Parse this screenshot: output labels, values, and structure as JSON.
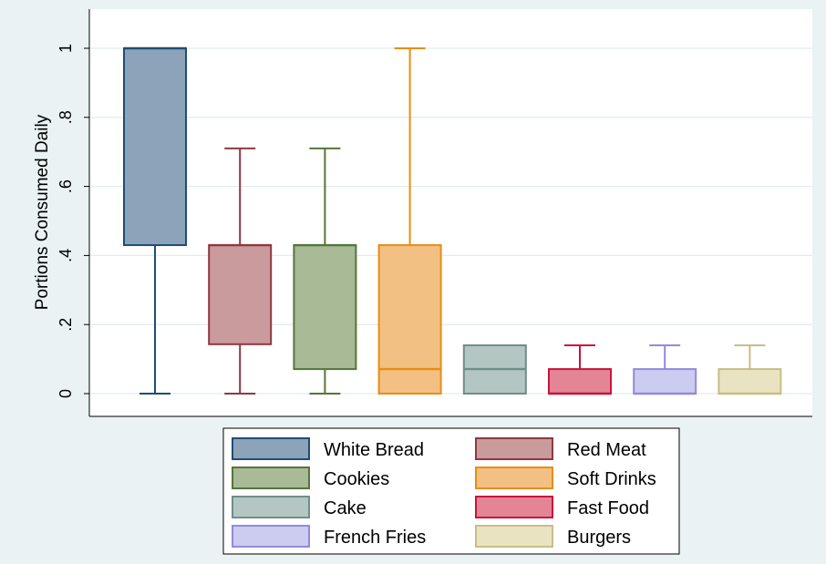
{
  "chart_data": {
    "type": "box",
    "ylabel": "Portions Consumed Daily",
    "ylim": [
      -0.06,
      1.07
    ],
    "yticks": [
      0,
      0.2,
      0.4,
      0.6,
      0.8,
      1.0
    ],
    "ytick_labels": [
      "0",
      ".2",
      ".4",
      ".6",
      ".8",
      "1"
    ],
    "grid": true,
    "legend_position": "bottom",
    "series": [
      {
        "name": "White Bread",
        "color": "#8ca3b9",
        "edge": "#1f4d74",
        "lower_whisker": 0,
        "q1": 0.43,
        "median": 1.0,
        "q3": 1.0,
        "upper_whisker": 1.0
      },
      {
        "name": "Red Meat",
        "color": "#c99b9d",
        "edge": "#8f3841",
        "lower_whisker": 0,
        "q1": 0.143,
        "median": 0.43,
        "q3": 0.43,
        "upper_whisker": 0.71
      },
      {
        "name": "Cookies",
        "color": "#a9ba97",
        "edge": "#56753a",
        "lower_whisker": 0,
        "q1": 0.071,
        "median": 0.43,
        "q3": 0.43,
        "upper_whisker": 0.71
      },
      {
        "name": "Soft Drinks",
        "color": "#f2c083",
        "edge": "#e98d12",
        "lower_whisker": 0,
        "q1": 0,
        "median": 0.071,
        "q3": 0.43,
        "upper_whisker": 1.0
      },
      {
        "name": "Cake",
        "color": "#b3c6c1",
        "edge": "#6f8e89",
        "lower_whisker": 0,
        "q1": 0,
        "median": 0.071,
        "q3": 0.14,
        "upper_whisker": 0.14
      },
      {
        "name": "Fast Food",
        "color": "#e38595",
        "edge": "#c8143f",
        "lower_whisker": 0,
        "q1": 0,
        "median": 0,
        "q3": 0.071,
        "upper_whisker": 0.14
      },
      {
        "name": "French Fries",
        "color": "#cccbf0",
        "edge": "#9389dc",
        "lower_whisker": 0,
        "q1": 0,
        "median": 0,
        "q3": 0.071,
        "upper_whisker": 0.14
      },
      {
        "name": "Burgers",
        "color": "#e9e3c2",
        "edge": "#c8bd87",
        "lower_whisker": 0,
        "q1": 0,
        "median": 0,
        "q3": 0.071,
        "upper_whisker": 0.14
      }
    ]
  }
}
